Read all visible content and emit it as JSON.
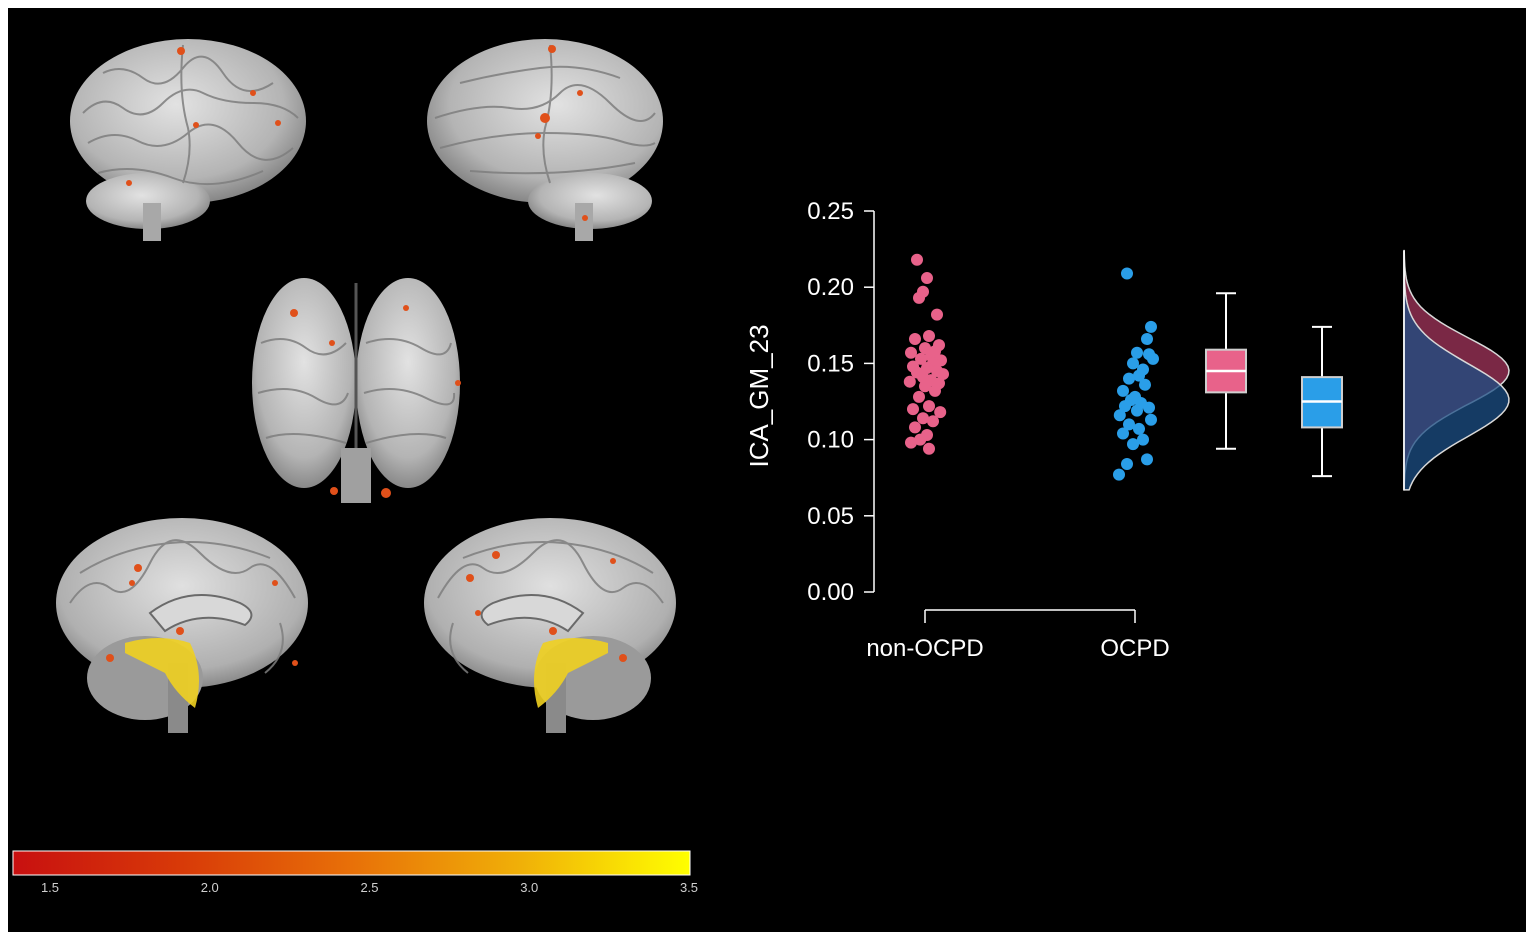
{
  "colors": {
    "non_ocpd": "#e8628a",
    "ocpd": "#2a9ee8",
    "cortex": "#b8b8b8",
    "cluster": "#e0501a",
    "highlight": "#f0d020",
    "background": "#000000"
  },
  "brain_views": [
    {
      "name": "left-lateral-view"
    },
    {
      "name": "right-lateral-view"
    },
    {
      "name": "anterior-view"
    },
    {
      "name": "left-medial-view"
    },
    {
      "name": "right-medial-view"
    }
  ],
  "colorbar": {
    "min": 1.5,
    "max": 3.5,
    "ticks": [
      "1.5",
      "2.0",
      "2.5",
      "3.0",
      "3.5"
    ],
    "gradient": [
      "#c81010",
      "#d83a08",
      "#e87008",
      "#f0b008",
      "#ffff00"
    ]
  },
  "chart_data": {
    "type": "scatter",
    "ylabel": "ICA_GM_23",
    "ylim": [
      0,
      0.25
    ],
    "yticks": [
      "0.00",
      "0.05",
      "0.10",
      "0.15",
      "0.20",
      "0.25"
    ],
    "categories": [
      "non-OCPD",
      "OCPD"
    ],
    "series": [
      {
        "name": "non-OCPD",
        "points": [
          {
            "j": -0.2,
            "y": 0.218
          },
          {
            "j": 0.05,
            "y": 0.206
          },
          {
            "j": -0.05,
            "y": 0.197
          },
          {
            "j": -0.15,
            "y": 0.193
          },
          {
            "j": 0.3,
            "y": 0.182
          },
          {
            "j": 0.1,
            "y": 0.168
          },
          {
            "j": -0.25,
            "y": 0.166
          },
          {
            "j": 0.35,
            "y": 0.162
          },
          {
            "j": 0.0,
            "y": 0.16
          },
          {
            "j": 0.25,
            "y": 0.158
          },
          {
            "j": -0.35,
            "y": 0.157
          },
          {
            "j": 0.15,
            "y": 0.155
          },
          {
            "j": -0.1,
            "y": 0.153
          },
          {
            "j": 0.4,
            "y": 0.152
          },
          {
            "j": 0.2,
            "y": 0.15
          },
          {
            "j": -0.3,
            "y": 0.148
          },
          {
            "j": 0.05,
            "y": 0.147
          },
          {
            "j": 0.3,
            "y": 0.145
          },
          {
            "j": -0.2,
            "y": 0.144
          },
          {
            "j": 0.45,
            "y": 0.143
          },
          {
            "j": -0.05,
            "y": 0.141
          },
          {
            "j": 0.15,
            "y": 0.139
          },
          {
            "j": -0.38,
            "y": 0.138
          },
          {
            "j": 0.35,
            "y": 0.137
          },
          {
            "j": 0.0,
            "y": 0.135
          },
          {
            "j": 0.25,
            "y": 0.132
          },
          {
            "j": -0.15,
            "y": 0.128
          },
          {
            "j": 0.1,
            "y": 0.122
          },
          {
            "j": -0.3,
            "y": 0.12
          },
          {
            "j": 0.38,
            "y": 0.118
          },
          {
            "j": -0.05,
            "y": 0.114
          },
          {
            "j": 0.2,
            "y": 0.112
          },
          {
            "j": -0.25,
            "y": 0.108
          },
          {
            "j": 0.05,
            "y": 0.103
          },
          {
            "j": -0.12,
            "y": 0.1
          },
          {
            "j": -0.35,
            "y": 0.098
          },
          {
            "j": 0.1,
            "y": 0.094
          }
        ],
        "box": {
          "min": 0.094,
          "q1": 0.131,
          "median": 0.145,
          "q3": 0.159,
          "max": 0.196
        }
      },
      {
        "name": "OCPD",
        "points": [
          {
            "j": -0.2,
            "y": 0.209
          },
          {
            "j": 0.4,
            "y": 0.174
          },
          {
            "j": 0.3,
            "y": 0.166
          },
          {
            "j": 0.05,
            "y": 0.157
          },
          {
            "j": 0.35,
            "y": 0.156
          },
          {
            "j": 0.45,
            "y": 0.153
          },
          {
            "j": -0.05,
            "y": 0.15
          },
          {
            "j": 0.2,
            "y": 0.146
          },
          {
            "j": 0.1,
            "y": 0.142
          },
          {
            "j": -0.15,
            "y": 0.14
          },
          {
            "j": 0.25,
            "y": 0.136
          },
          {
            "j": -0.3,
            "y": 0.132
          },
          {
            "j": 0.0,
            "y": 0.128
          },
          {
            "j": -0.1,
            "y": 0.126
          },
          {
            "j": 0.15,
            "y": 0.124
          },
          {
            "j": -0.25,
            "y": 0.122
          },
          {
            "j": 0.35,
            "y": 0.121
          },
          {
            "j": 0.05,
            "y": 0.119
          },
          {
            "j": -0.38,
            "y": 0.116
          },
          {
            "j": 0.4,
            "y": 0.113
          },
          {
            "j": -0.15,
            "y": 0.11
          },
          {
            "j": 0.1,
            "y": 0.107
          },
          {
            "j": -0.3,
            "y": 0.104
          },
          {
            "j": 0.2,
            "y": 0.1
          },
          {
            "j": -0.05,
            "y": 0.097
          },
          {
            "j": 0.3,
            "y": 0.087
          },
          {
            "j": -0.2,
            "y": 0.084
          },
          {
            "j": -0.4,
            "y": 0.077
          }
        ],
        "box": {
          "min": 0.076,
          "q1": 0.108,
          "median": 0.125,
          "q3": 0.141,
          "max": 0.174
        }
      }
    ],
    "density": [
      {
        "name": "non-OCPD",
        "color": "#7a2845",
        "mean": 0.145,
        "sd": 0.022
      },
      {
        "name": "OCPD",
        "color": "#1c4f85",
        "mean": 0.126,
        "sd": 0.024
      }
    ]
  }
}
